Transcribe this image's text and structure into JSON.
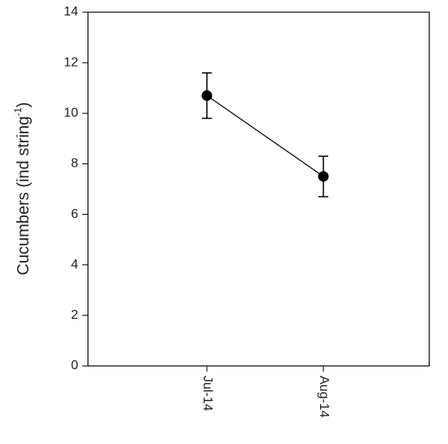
{
  "chart_data": {
    "type": "line",
    "y_label": {
      "text": "Cucumbers (ind string",
      "superscript": "-1",
      "suffix": ")"
    },
    "categories": [
      "Jul-14",
      "Aug-14"
    ],
    "series": [
      {
        "color": "#000000",
        "values": [
          10.7,
          7.5
        ],
        "errors": [
          0.9,
          0.8
        ]
      }
    ],
    "ylim": [
      0,
      14
    ],
    "yticks": [
      0,
      2,
      4,
      6,
      8,
      10,
      12,
      14
    ],
    "grid": false
  }
}
